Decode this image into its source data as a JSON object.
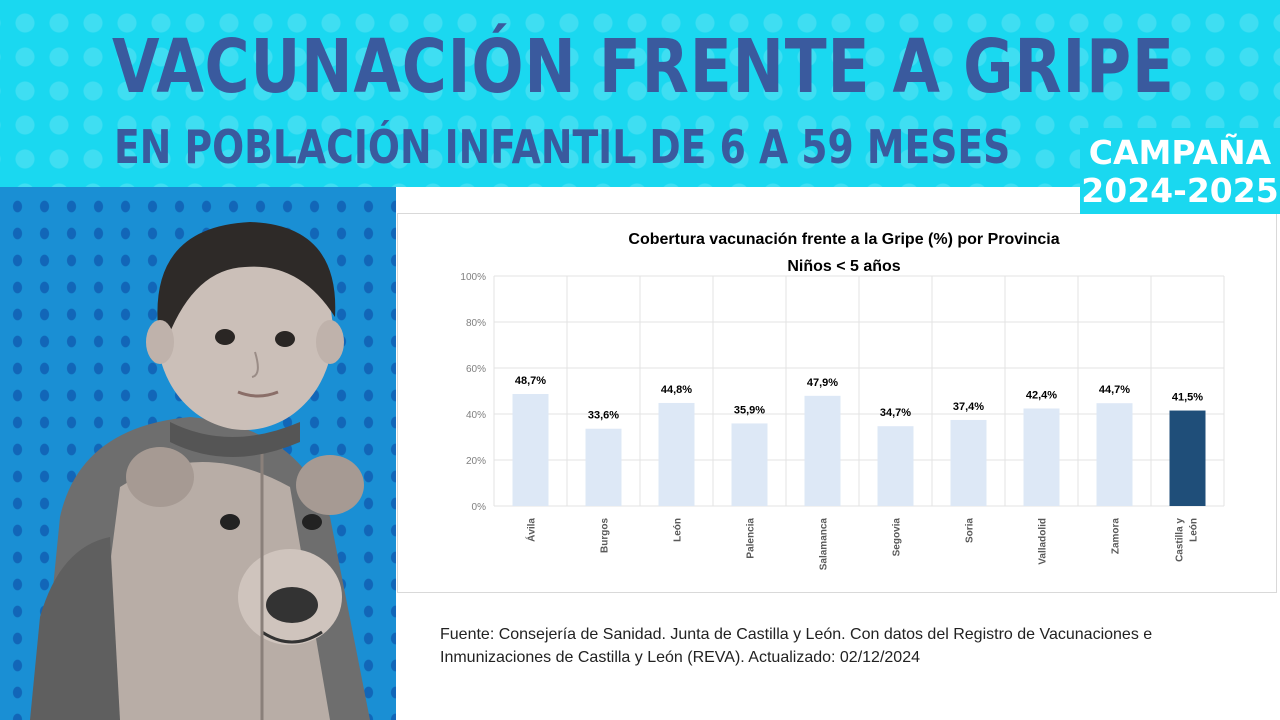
{
  "header": {
    "title": "VACUNACIÓN FRENTE A GRIPE",
    "subtitle": "EN POBLACIÓN INFANTIL DE 6 A 59 MESES",
    "campaign_label": "CAMPAÑA",
    "campaign_years": "2024-2025",
    "banner_color": "#1ad8f0",
    "title_color": "#3a5a9e"
  },
  "photo": {
    "alt": "niño pequeño con pijama de oso sobre fondo azul con puntos"
  },
  "chart_data": {
    "type": "bar",
    "title": "Cobertura vacunación frente a la Gripe (%) por Provincia",
    "subtitle": "Niños < 5 años",
    "categories": [
      "Ávila",
      "Burgos",
      "León",
      "Palencia",
      "Salamanca",
      "Segovia",
      "Soria",
      "Valladolid",
      "Zamora",
      "Castilla y León"
    ],
    "values": [
      48.7,
      33.6,
      44.8,
      35.9,
      47.9,
      34.7,
      37.4,
      42.4,
      44.7,
      41.5
    ],
    "value_labels": [
      "48,7%",
      "33,6%",
      "44,8%",
      "35,9%",
      "47,9%",
      "34,7%",
      "37,4%",
      "42,4%",
      "44,7%",
      "41,5%"
    ],
    "ylim": [
      0,
      100
    ],
    "yticks": [
      0,
      20,
      40,
      60,
      80,
      100
    ],
    "ytick_labels": [
      "0%",
      "20%",
      "40%",
      "60%",
      "80%",
      "100%"
    ],
    "xlabel": "",
    "ylabel": "",
    "grid": true,
    "legend": "none",
    "colors": {
      "bar": "#dde8f6",
      "highlight": "#1f4e79"
    },
    "highlight_index": 9
  },
  "footer": {
    "source": "Fuente: Consejería de Sanidad. Junta de Castilla y León.  Con datos del Registro de Vacunaciones e Inmunizaciones  de Castilla y León (REVA). Actualizado: 02/12/2024"
  }
}
